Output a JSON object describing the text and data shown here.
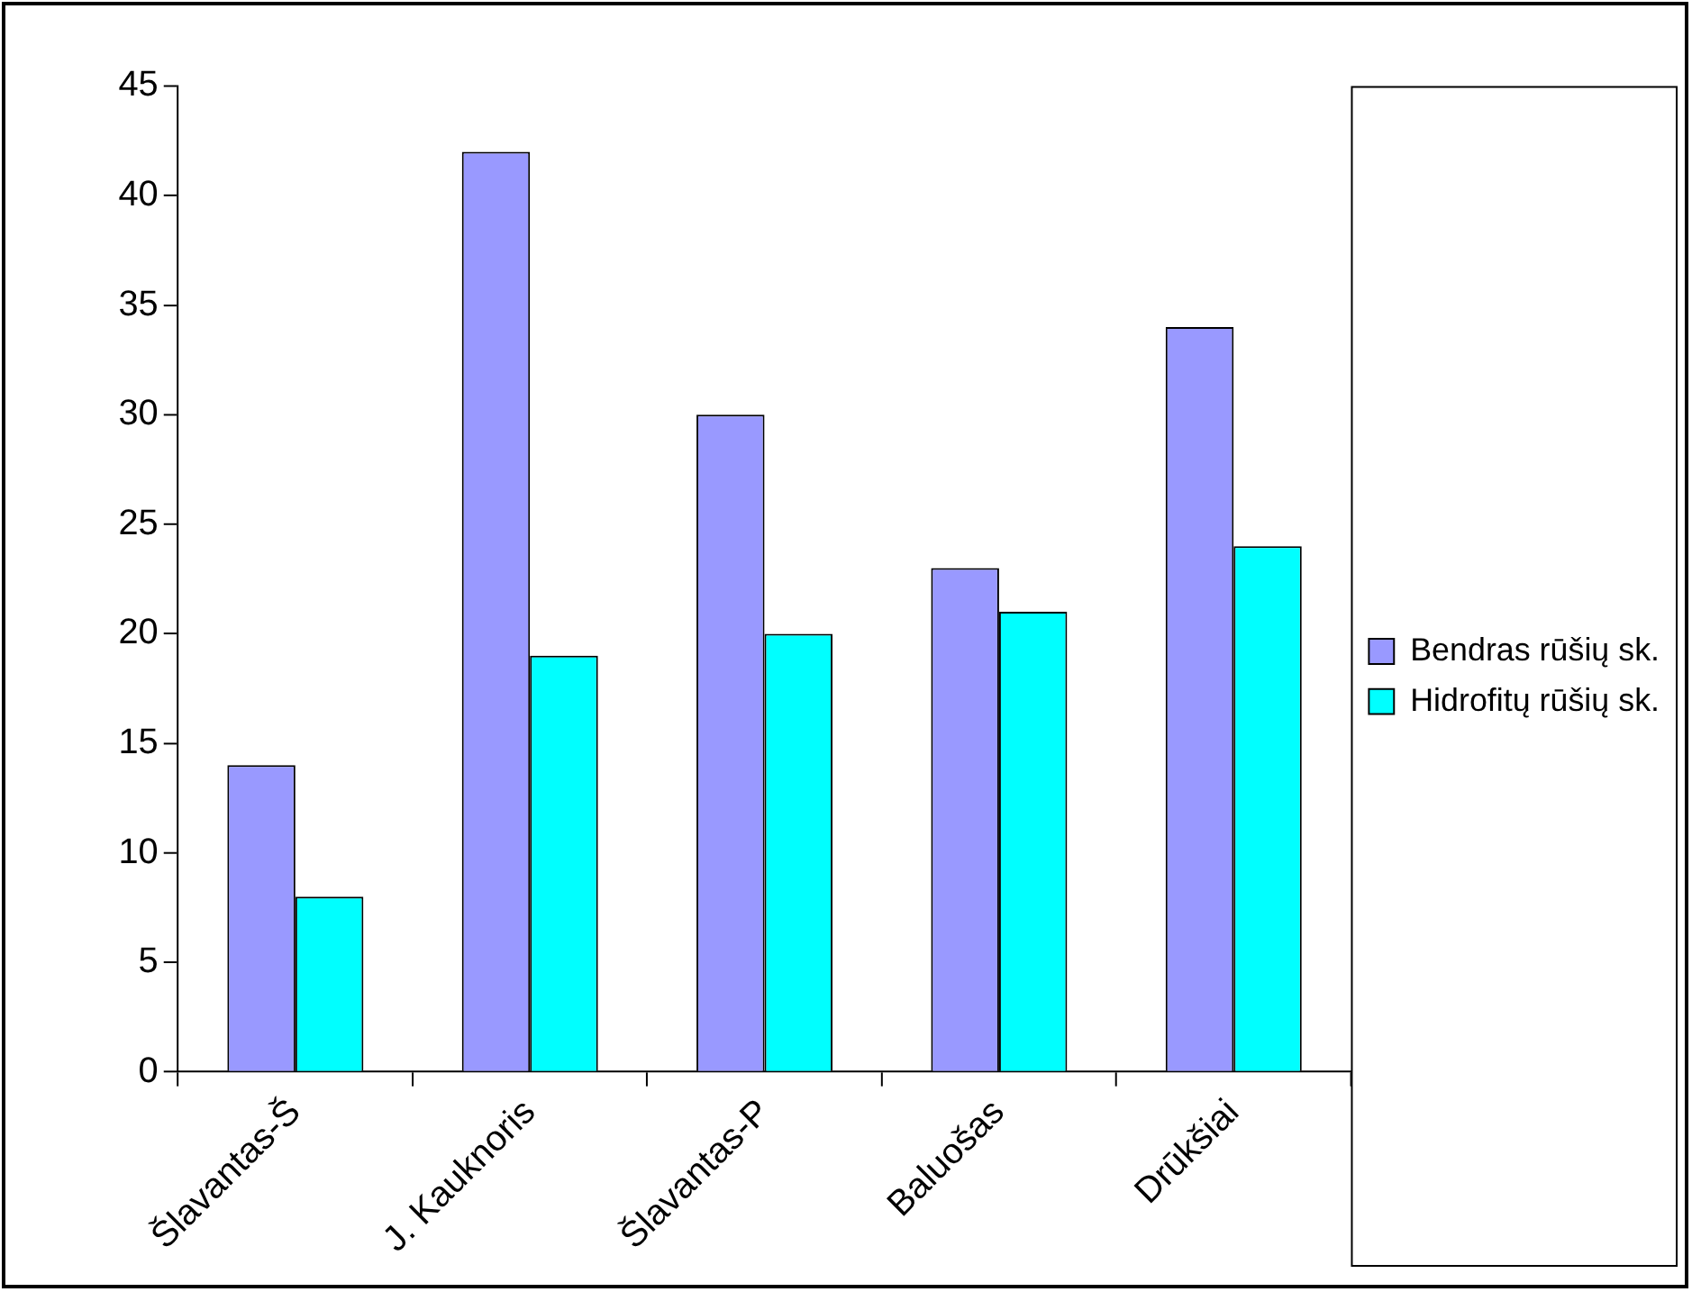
{
  "chart_data": {
    "type": "bar",
    "categories": [
      "Šlavantas-Š",
      "J. Kauknoris",
      "Šlavantas-P",
      "Baluošas",
      "Drūkšiai"
    ],
    "series": [
      {
        "name": "Bendras rūšių sk.",
        "color": "#9999ff",
        "values": [
          14,
          42,
          30,
          23,
          34
        ]
      },
      {
        "name": "Hidrofitų rūšių sk.",
        "color": "#00ffff",
        "values": [
          8,
          19,
          20,
          21,
          24
        ]
      }
    ],
    "ylim": [
      0,
      45
    ],
    "yticks": [
      0,
      5,
      10,
      15,
      20,
      25,
      30,
      35,
      40,
      45
    ],
    "grid": false,
    "legend": "right"
  }
}
